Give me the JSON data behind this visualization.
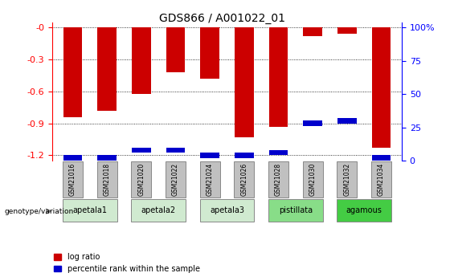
{
  "title": "GDS866 / A001022_01",
  "samples": [
    "GSM21016",
    "GSM21018",
    "GSM21020",
    "GSM21022",
    "GSM21024",
    "GSM21026",
    "GSM21028",
    "GSM21030",
    "GSM21032",
    "GSM21034"
  ],
  "log_ratios": [
    -0.84,
    -0.78,
    -0.62,
    -0.42,
    -0.48,
    -1.03,
    -0.93,
    -0.08,
    -0.06,
    -1.13
  ],
  "percentile_ranks_pct": [
    2,
    2,
    8,
    8,
    4,
    4,
    6,
    28,
    30,
    2
  ],
  "groups": [
    {
      "label": "apetala1",
      "indices": [
        0,
        1
      ],
      "color": "#d0ead0"
    },
    {
      "label": "apetala2",
      "indices": [
        2,
        3
      ],
      "color": "#d0ead0"
    },
    {
      "label": "apetala3",
      "indices": [
        4,
        5
      ],
      "color": "#d0ead0"
    },
    {
      "label": "pistillata",
      "indices": [
        6,
        7
      ],
      "color": "#88dd88"
    },
    {
      "label": "agamous",
      "indices": [
        8,
        9
      ],
      "color": "#44cc44"
    }
  ],
  "ylim_left": [
    -1.25,
    0.05
  ],
  "yticks_left": [
    0.0,
    -0.3,
    -0.6,
    -0.9,
    -1.2
  ],
  "ylim_right": [
    -1.25,
    0.05
  ],
  "y2ticks_pct": [
    0,
    25,
    50,
    75,
    100
  ],
  "bar_color": "#cc0000",
  "pct_color": "#0000cc",
  "bar_width": 0.55,
  "bg_color": "#ffffff",
  "sample_box_color": "#c0c0c0",
  "legend_entries": [
    "log ratio",
    "percentile rank within the sample"
  ]
}
